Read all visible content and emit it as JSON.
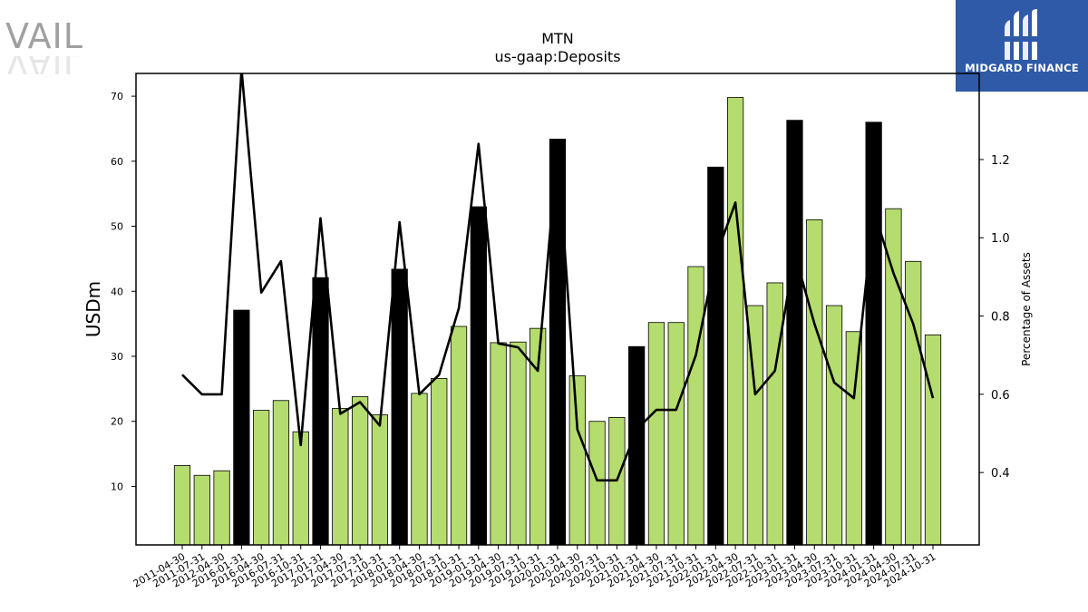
{
  "brand": {
    "left_logo_text": "VAIL",
    "right_logo_text": "MIDGARD FINANCE",
    "right_logo_color": "#2e5aa8"
  },
  "chart_data": {
    "type": "bar",
    "title": "MTN",
    "subtitle": "us-gaap:Deposits",
    "ylabel": "USDm",
    "y2label": "Percentage of Assets",
    "ylim": [
      1,
      73.5
    ],
    "y2lim": [
      0.215,
      1.42
    ],
    "yticks": [
      10,
      20,
      30,
      40,
      50,
      60,
      70
    ],
    "y2ticks": [
      0.4,
      0.6,
      0.8,
      1.0,
      1.2
    ],
    "bar_color_default": "#b5dc6e",
    "bar_color_highlight": "#000000",
    "line_color": "#000000",
    "categories": [
      "2011-04-30",
      "2011-07-31",
      "2012-04-30",
      "2016-01-31",
      "2016-04-30",
      "2016-07-31",
      "2016-10-31",
      "2017-01-31",
      "2017-04-30",
      "2017-07-31",
      "2017-10-31",
      "2018-01-31",
      "2018-04-30",
      "2018-07-31",
      "2018-10-31",
      "2019-01-31",
      "2019-04-30",
      "2019-07-31",
      "2019-10-31",
      "2020-01-31",
      "2020-04-30",
      "2020-07-31",
      "2020-10-31",
      "2021-01-31",
      "2021-04-30",
      "2021-07-31",
      "2021-10-31",
      "2022-01-31",
      "2022-04-30",
      "2022-07-31",
      "2022-10-31",
      "2023-01-31",
      "2023-04-30",
      "2023-07-31",
      "2023-10-31",
      "2024-01-31",
      "2024-04-30",
      "2024-07-31",
      "2024-10-31"
    ],
    "series": [
      {
        "type": "bar",
        "axis": "left",
        "values": [
          13.2,
          11.7,
          12.4,
          37.1,
          21.7,
          23.2,
          18.4,
          42.1,
          22.0,
          23.8,
          21.0,
          43.4,
          24.3,
          26.6,
          34.6,
          53.0,
          32.1,
          32.2,
          34.3,
          63.4,
          27.0,
          20.0,
          20.6,
          31.5,
          35.2,
          35.2,
          43.8,
          59.1,
          69.8,
          37.8,
          41.3,
          66.3,
          51.0,
          37.8,
          33.8,
          66.0,
          52.7,
          44.6,
          33.3
        ],
        "highlight": [
          false,
          false,
          false,
          true,
          false,
          false,
          false,
          true,
          false,
          false,
          false,
          true,
          false,
          false,
          false,
          true,
          false,
          false,
          false,
          true,
          false,
          false,
          false,
          true,
          false,
          false,
          false,
          true,
          false,
          false,
          false,
          true,
          false,
          false,
          false,
          true,
          false,
          false,
          false
        ]
      },
      {
        "type": "line",
        "axis": "right",
        "values": [
          0.65,
          0.6,
          0.6,
          1.43,
          0.86,
          0.94,
          0.47,
          1.05,
          0.55,
          0.58,
          0.52,
          1.04,
          0.6,
          0.65,
          0.82,
          1.24,
          0.73,
          0.72,
          0.66,
          1.23,
          0.51,
          0.38,
          0.38,
          0.51,
          0.56,
          0.56,
          0.7,
          0.95,
          1.09,
          0.6,
          0.66,
          0.96,
          0.78,
          0.63,
          0.59,
          1.07,
          0.91,
          0.78,
          0.59
        ]
      }
    ]
  }
}
